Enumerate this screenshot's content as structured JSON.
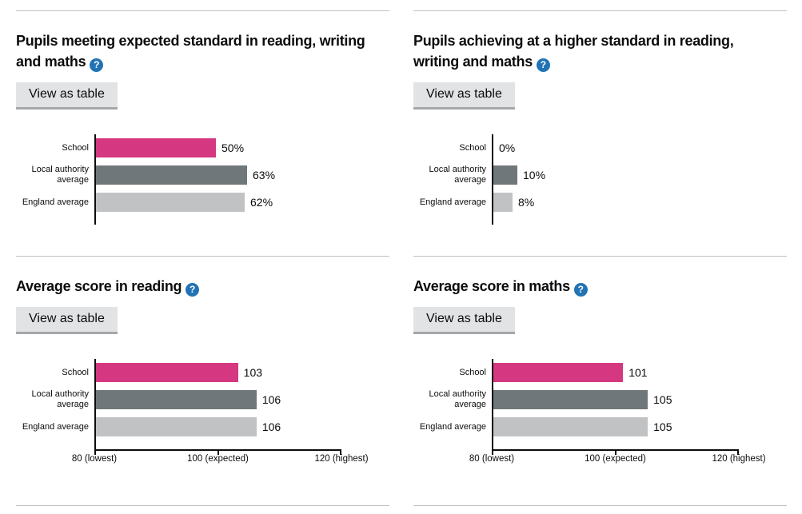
{
  "ui": {
    "view_as_table_label": "View as table",
    "help_icon_glyph": "?"
  },
  "palette": {
    "school_bar": "#d53880",
    "local_authority_bar": "#6f777b",
    "england_bar": "#c0c2c4",
    "axis": "#0b0c0c",
    "divider": "#bfc1c3",
    "help_icon_bg": "#2173b5",
    "button_bg": "#e2e3e4",
    "button_shadow": "#a5a8aa"
  },
  "chart_data": [
    {
      "type": "bar",
      "orientation": "horizontal",
      "title": "Pupils meeting expected standard in reading, writing and maths",
      "title_display": "Pupils meeting expected standard in reading, writing\nand maths",
      "categories": [
        "School",
        "Local authority average",
        "England average"
      ],
      "values": [
        50,
        63,
        62
      ],
      "value_labels": [
        "50%",
        "63%",
        "62%"
      ],
      "unit": "%",
      "xlim": [
        0,
        100
      ],
      "x_axis_visible": false,
      "bar_colors": [
        "#d53880",
        "#6f777b",
        "#c0c2c4"
      ]
    },
    {
      "type": "bar",
      "orientation": "horizontal",
      "title": "Pupils achieving at a higher standard in reading, writing and maths",
      "title_display": "Pupils achieving at a higher standard in reading,\nwriting and maths",
      "categories": [
        "School",
        "Local authority average",
        "England average"
      ],
      "values": [
        0,
        10,
        8
      ],
      "value_labels": [
        "0%",
        "10%",
        "8%"
      ],
      "unit": "%",
      "xlim": [
        0,
        100
      ],
      "x_axis_visible": false,
      "bar_colors": [
        "#d53880",
        "#6f777b",
        "#c0c2c4"
      ]
    },
    {
      "type": "bar",
      "orientation": "horizontal",
      "title": "Average score in reading",
      "title_display": "Average score in reading",
      "categories": [
        "School",
        "Local authority average",
        "England average"
      ],
      "values": [
        103,
        106,
        106
      ],
      "value_labels": [
        "103",
        "106",
        "106"
      ],
      "unit": "score",
      "xlim": [
        80,
        120
      ],
      "x_axis_visible": true,
      "x_tick_labels": [
        "80 (lowest)",
        "100 (expected)",
        "120 (highest)"
      ],
      "bar_colors": [
        "#d53880",
        "#6f777b",
        "#c0c2c4"
      ]
    },
    {
      "type": "bar",
      "orientation": "horizontal",
      "title": "Average score in maths",
      "title_display": "Average score in maths",
      "categories": [
        "School",
        "Local authority average",
        "England average"
      ],
      "values": [
        101,
        105,
        105
      ],
      "value_labels": [
        "101",
        "105",
        "105"
      ],
      "unit": "score",
      "xlim": [
        80,
        120
      ],
      "x_axis_visible": true,
      "x_tick_labels": [
        "80 (lowest)",
        "100 (expected)",
        "120 (highest)"
      ],
      "bar_colors": [
        "#d53880",
        "#6f777b",
        "#c0c2c4"
      ]
    }
  ]
}
